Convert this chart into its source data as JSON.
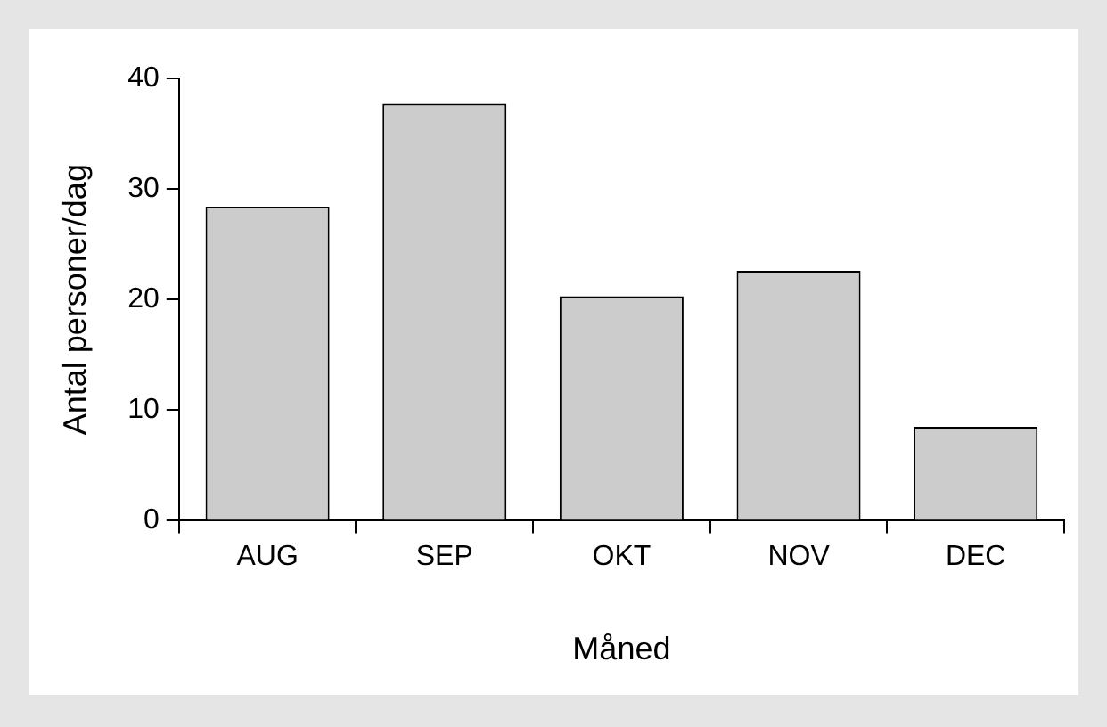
{
  "chart_data": {
    "type": "bar",
    "xlabel": "Måned",
    "ylabel": "Antal personer/dag",
    "categories": [
      "AUG",
      "SEP",
      "OKT",
      "NOV",
      "DEC"
    ],
    "values": [
      28.4,
      37.7,
      20.3,
      22.6,
      8.5
    ],
    "color": "#cccccc",
    "ylim": [
      0,
      40
    ],
    "yticks": [
      0,
      10,
      20,
      30,
      40
    ],
    "grid": false,
    "legend": false
  }
}
